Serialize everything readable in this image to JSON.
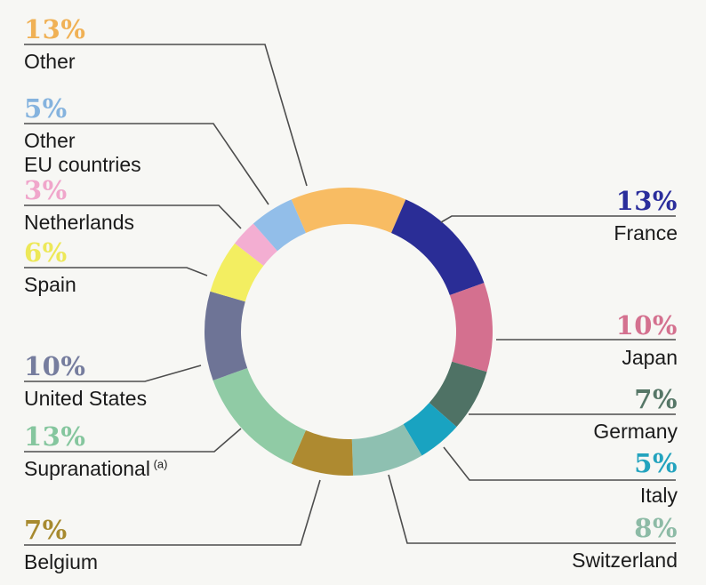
{
  "chart_data": {
    "type": "pie",
    "subtype": "donut",
    "unit": "%",
    "legend_position": "callout-labels",
    "start_angle_deg": -23.4,
    "total": 100,
    "segments": [
      {
        "id": "other",
        "label": "Other",
        "value": 13,
        "pct_label": "13%",
        "color": "#F8BC63",
        "text_color": "#F0B155"
      },
      {
        "id": "france",
        "label": "France",
        "value": 13,
        "pct_label": "13%",
        "color": "#2A2D96",
        "text_color": "#2B2E9C"
      },
      {
        "id": "japan",
        "label": "Japan",
        "value": 10,
        "pct_label": "10%",
        "color": "#D4708F",
        "text_color": "#D4718F"
      },
      {
        "id": "germany",
        "label": "Germany",
        "value": 7,
        "pct_label": "7%",
        "color": "#4F7265",
        "text_color": "#567767"
      },
      {
        "id": "italy",
        "label": "Italy",
        "value": 5,
        "pct_label": "5%",
        "color": "#19A3C1",
        "text_color": "#23A3BE"
      },
      {
        "id": "switzerland",
        "label": "Switzerland",
        "value": 8,
        "pct_label": "8%",
        "color": "#8EC0B1",
        "text_color": "#8DBBA6"
      },
      {
        "id": "belgium",
        "label": "Belgium",
        "value": 7,
        "pct_label": "7%",
        "color": "#AE8A30",
        "text_color": "#A78A2F"
      },
      {
        "id": "supranational",
        "label": "Supranational",
        "value": 13,
        "pct_label": "13%",
        "color": "#90CBA5",
        "text_color": "#85C69E",
        "note": "(a)"
      },
      {
        "id": "united-states",
        "label": "United States",
        "value": 10,
        "pct_label": "10%",
        "color": "#6E7496",
        "text_color": "#767D9E"
      },
      {
        "id": "spain",
        "label": "Spain",
        "value": 6,
        "pct_label": "6%",
        "color": "#F3EE61",
        "text_color": "#EDE858"
      },
      {
        "id": "netherlands",
        "label": "Netherlands",
        "value": 3,
        "pct_label": "3%",
        "color": "#F3AED2",
        "text_color": "#F0A6CB"
      },
      {
        "id": "other-eu-countries",
        "label": "Other\nEU countries",
        "value": 5,
        "pct_label": "5%",
        "color": "#92BEE9",
        "text_color": "#85B3DE"
      }
    ],
    "colors": {
      "background": "#F7F7F4",
      "leader_line": "#4D4D4D",
      "country_text": "#1B1B1B"
    }
  }
}
